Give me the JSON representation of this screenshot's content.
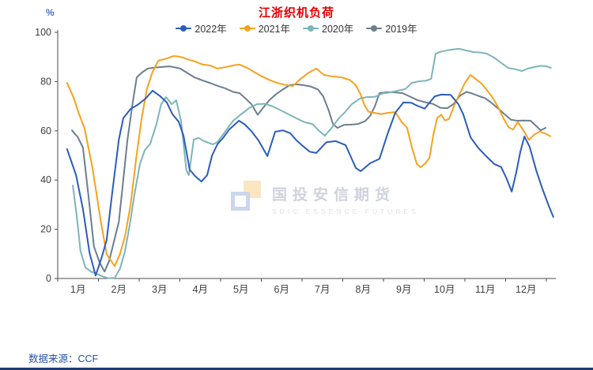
{
  "title": "江浙织机负荷",
  "y_axis_unit": "%",
  "footer": {
    "source_label": "数据来源：CCF"
  },
  "watermark": {
    "name": "国投安信期货",
    "subtitle": "SDIC ESSENCE FUTURES"
  },
  "chart_data": {
    "type": "line",
    "title": "江浙织机负荷",
    "xlabel": "",
    "ylabel": "%",
    "ylim": [
      0,
      100
    ],
    "y_ticks": [
      0,
      20,
      40,
      60,
      80,
      100
    ],
    "x_tick_labels": [
      "1月",
      "2月",
      "3月",
      "4月",
      "5月",
      "6月",
      "7月",
      "8月",
      "9月",
      "10月",
      "11月",
      "12月"
    ],
    "x_unit": "month (0 = Jan 1, 12 = Dec 31), weekly load rate in %",
    "grid": false,
    "legend_position": "top",
    "series": [
      {
        "name": "2022年",
        "color": "#2b5cbe",
        "points": [
          [
            0.23,
            52.6
          ],
          [
            0.45,
            42
          ],
          [
            0.62,
            28.2
          ],
          [
            0.78,
            10.5
          ],
          [
            0.93,
            1.2
          ],
          [
            1.07,
            8
          ],
          [
            1.2,
            15.5
          ],
          [
            1.34,
            35
          ],
          [
            1.5,
            56.4
          ],
          [
            1.61,
            65.1
          ],
          [
            1.79,
            68.9
          ],
          [
            1.96,
            70.5
          ],
          [
            2.16,
            73.1
          ],
          [
            2.33,
            76.3
          ],
          [
            2.52,
            74
          ],
          [
            2.68,
            71.5
          ],
          [
            2.82,
            66.7
          ],
          [
            2.97,
            63.7
          ],
          [
            3.09,
            58
          ],
          [
            3.24,
            44.2
          ],
          [
            3.38,
            41.5
          ],
          [
            3.53,
            39.4
          ],
          [
            3.67,
            42
          ],
          [
            3.79,
            50
          ],
          [
            3.92,
            54.5
          ],
          [
            4.08,
            57.5
          ],
          [
            4.21,
            60.5
          ],
          [
            4.45,
            64.1
          ],
          [
            4.6,
            62.5
          ],
          [
            4.76,
            59.8
          ],
          [
            4.93,
            56.1
          ],
          [
            5.15,
            49.7
          ],
          [
            5.34,
            59.6
          ],
          [
            5.53,
            60.2
          ],
          [
            5.71,
            59
          ],
          [
            5.86,
            56.2
          ],
          [
            6.02,
            53.8
          ],
          [
            6.19,
            51.5
          ],
          [
            6.35,
            51
          ],
          [
            6.6,
            55.4
          ],
          [
            6.83,
            55.8
          ],
          [
            7.07,
            54.2
          ],
          [
            7.32,
            44.9
          ],
          [
            7.44,
            43.6
          ],
          [
            7.67,
            46.8
          ],
          [
            7.9,
            48.6
          ],
          [
            8.1,
            58.7
          ],
          [
            8.29,
            67.3
          ],
          [
            8.49,
            71.5
          ],
          [
            8.68,
            71.4
          ],
          [
            8.83,
            70.2
          ],
          [
            9.01,
            69
          ],
          [
            9.26,
            74
          ],
          [
            9.42,
            74.7
          ],
          [
            9.65,
            74.6
          ],
          [
            9.84,
            70.8
          ],
          [
            9.96,
            66.7
          ],
          [
            10.14,
            57.3
          ],
          [
            10.33,
            53
          ],
          [
            10.52,
            49.7
          ],
          [
            10.72,
            46.5
          ],
          [
            10.89,
            45.3
          ],
          [
            11.03,
            40.4
          ],
          [
            11.15,
            35.3
          ],
          [
            11.26,
            43
          ],
          [
            11.36,
            51.3
          ],
          [
            11.46,
            57.7
          ],
          [
            11.59,
            53.5
          ],
          [
            11.75,
            44
          ],
          [
            11.9,
            36.5
          ],
          [
            12.06,
            29.5
          ],
          [
            12.17,
            25
          ]
        ]
      },
      {
        "name": "2021年",
        "color": "#f6a21d",
        "points": [
          [
            0.23,
            79.5
          ],
          [
            0.39,
            73.5
          ],
          [
            0.52,
            67
          ],
          [
            0.66,
            60.9
          ],
          [
            0.85,
            45.2
          ],
          [
            1.05,
            24
          ],
          [
            1.2,
            9.9
          ],
          [
            1.4,
            5
          ],
          [
            1.53,
            10
          ],
          [
            1.65,
            17
          ],
          [
            1.79,
            30
          ],
          [
            1.92,
            48
          ],
          [
            2.06,
            65
          ],
          [
            2.19,
            77
          ],
          [
            2.33,
            84
          ],
          [
            2.47,
            88.5
          ],
          [
            2.66,
            89.3
          ],
          [
            2.85,
            90.4
          ],
          [
            3.01,
            90.1
          ],
          [
            3.2,
            89
          ],
          [
            3.38,
            88.1
          ],
          [
            3.55,
            87
          ],
          [
            3.75,
            86.5
          ],
          [
            3.92,
            85.3
          ],
          [
            4.16,
            86
          ],
          [
            4.35,
            86.7
          ],
          [
            4.47,
            86.9
          ],
          [
            4.66,
            85.5
          ],
          [
            4.83,
            83.8
          ],
          [
            5.03,
            82
          ],
          [
            5.22,
            80.5
          ],
          [
            5.42,
            79.3
          ],
          [
            5.61,
            78.6
          ],
          [
            5.77,
            78.2
          ],
          [
            5.96,
            81
          ],
          [
            6.16,
            83.6
          ],
          [
            6.35,
            85.3
          ],
          [
            6.54,
            82.7
          ],
          [
            6.74,
            82.1
          ],
          [
            6.97,
            81.7
          ],
          [
            7.18,
            80.6
          ],
          [
            7.32,
            78.5
          ],
          [
            7.44,
            74.7
          ],
          [
            7.53,
            70.5
          ],
          [
            7.63,
            67.8
          ],
          [
            7.77,
            67.3
          ],
          [
            7.94,
            66.8
          ],
          [
            8.12,
            67.3
          ],
          [
            8.29,
            67.6
          ],
          [
            8.45,
            63.5
          ],
          [
            8.58,
            61.2
          ],
          [
            8.7,
            53.2
          ],
          [
            8.82,
            46.5
          ],
          [
            8.91,
            45.2
          ],
          [
            9.03,
            46.8
          ],
          [
            9.13,
            49
          ],
          [
            9.22,
            58
          ],
          [
            9.32,
            65.3
          ],
          [
            9.42,
            66.5
          ],
          [
            9.51,
            64.2
          ],
          [
            9.61,
            64.8
          ],
          [
            9.73,
            70
          ],
          [
            9.86,
            74.7
          ],
          [
            10,
            79.5
          ],
          [
            10.14,
            82.7
          ],
          [
            10.27,
            81
          ],
          [
            10.41,
            79.2
          ],
          [
            10.54,
            76.5
          ],
          [
            10.68,
            73.5
          ],
          [
            10.82,
            69.5
          ],
          [
            10.95,
            65
          ],
          [
            11.07,
            61.5
          ],
          [
            11.18,
            60.5
          ],
          [
            11.3,
            63.6
          ],
          [
            11.44,
            60
          ],
          [
            11.57,
            56.3
          ],
          [
            11.71,
            58.6
          ],
          [
            11.84,
            59.7
          ],
          [
            11.98,
            58.8
          ],
          [
            12.1,
            57.8
          ]
        ]
      },
      {
        "name": "2020年",
        "color": "#7cb5ba",
        "points": [
          [
            0.37,
            37.8
          ],
          [
            0.47,
            25
          ],
          [
            0.56,
            11.2
          ],
          [
            0.68,
            4.5
          ],
          [
            0.82,
            2.8
          ],
          [
            0.97,
            1.8
          ],
          [
            1.11,
            0.8
          ],
          [
            1.24,
            0.1
          ],
          [
            1.4,
            0.3
          ],
          [
            1.53,
            4
          ],
          [
            1.65,
            11
          ],
          [
            1.77,
            22
          ],
          [
            1.88,
            33.7
          ],
          [
            2.02,
            46.5
          ],
          [
            2.14,
            52.2
          ],
          [
            2.27,
            54.6
          ],
          [
            2.43,
            63
          ],
          [
            2.54,
            70.8
          ],
          [
            2.66,
            73.7
          ],
          [
            2.8,
            70.8
          ],
          [
            2.91,
            72.4
          ],
          [
            3.03,
            64
          ],
          [
            3.16,
            44
          ],
          [
            3.22,
            42
          ],
          [
            3.34,
            56.4
          ],
          [
            3.46,
            57.1
          ],
          [
            3.57,
            56
          ],
          [
            3.69,
            55.2
          ],
          [
            3.81,
            54.5
          ],
          [
            3.92,
            55.4
          ],
          [
            4.04,
            58
          ],
          [
            4.16,
            60.8
          ],
          [
            4.31,
            64.1
          ],
          [
            4.5,
            66.7
          ],
          [
            4.7,
            69.2
          ],
          [
            4.89,
            70.8
          ],
          [
            5.09,
            71
          ],
          [
            5.28,
            69.9
          ],
          [
            5.48,
            68.3
          ],
          [
            5.67,
            66.7
          ],
          [
            5.86,
            65.1
          ],
          [
            6.06,
            63.5
          ],
          [
            6.25,
            62.8
          ],
          [
            6.43,
            59.8
          ],
          [
            6.56,
            58
          ],
          [
            6.72,
            61
          ],
          [
            6.89,
            64.8
          ],
          [
            7.05,
            67.5
          ],
          [
            7.22,
            70.8
          ],
          [
            7.42,
            73.1
          ],
          [
            7.59,
            73.7
          ],
          [
            7.79,
            73.8
          ],
          [
            7.98,
            75.2
          ],
          [
            8.17,
            75.6
          ],
          [
            8.37,
            76.4
          ],
          [
            8.54,
            77
          ],
          [
            8.7,
            79.5
          ],
          [
            8.87,
            80.1
          ],
          [
            9.05,
            80.4
          ],
          [
            9.17,
            81.1
          ],
          [
            9.28,
            91.3
          ],
          [
            9.42,
            92.2
          ],
          [
            9.57,
            92.7
          ],
          [
            9.73,
            93.1
          ],
          [
            9.86,
            93.3
          ],
          [
            10.04,
            92.6
          ],
          [
            10.21,
            92
          ],
          [
            10.39,
            91.8
          ],
          [
            10.54,
            91.3
          ],
          [
            10.72,
            89.7
          ],
          [
            10.89,
            87.6
          ],
          [
            11.07,
            85.5
          ],
          [
            11.24,
            85
          ],
          [
            11.4,
            84.3
          ],
          [
            11.55,
            85.3
          ],
          [
            11.7,
            85.9
          ],
          [
            11.86,
            86.4
          ],
          [
            12,
            86.2
          ],
          [
            12.11,
            85.5
          ]
        ]
      },
      {
        "name": "2019年",
        "color": "#6c7e8e",
        "points": [
          [
            0.35,
            60.2
          ],
          [
            0.49,
            57.5
          ],
          [
            0.62,
            53.2
          ],
          [
            0.76,
            33
          ],
          [
            0.89,
            13
          ],
          [
            1.03,
            6.5
          ],
          [
            1.15,
            2.8
          ],
          [
            1.26,
            7
          ],
          [
            1.38,
            15
          ],
          [
            1.5,
            23
          ],
          [
            1.61,
            40
          ],
          [
            1.71,
            56.1
          ],
          [
            1.83,
            70
          ],
          [
            1.94,
            81.7
          ],
          [
            2.08,
            83.8
          ],
          [
            2.21,
            85.3
          ],
          [
            2.39,
            85.7
          ],
          [
            2.58,
            86
          ],
          [
            2.74,
            86.2
          ],
          [
            2.87,
            85.8
          ],
          [
            3.01,
            85.3
          ],
          [
            3.18,
            83.5
          ],
          [
            3.36,
            81.7
          ],
          [
            3.55,
            80.5
          ],
          [
            3.73,
            79.5
          ],
          [
            3.92,
            78.3
          ],
          [
            4.12,
            77.2
          ],
          [
            4.31,
            75.8
          ],
          [
            4.47,
            75.3
          ],
          [
            4.62,
            73
          ],
          [
            4.76,
            70.8
          ],
          [
            4.91,
            66.5
          ],
          [
            5.05,
            69.5
          ],
          [
            5.2,
            72.5
          ],
          [
            5.36,
            74.8
          ],
          [
            5.51,
            76.6
          ],
          [
            5.69,
            78.5
          ],
          [
            5.84,
            78.9
          ],
          [
            6.02,
            78.6
          ],
          [
            6.21,
            78
          ],
          [
            6.39,
            76.8
          ],
          [
            6.52,
            74
          ],
          [
            6.66,
            68
          ],
          [
            6.76,
            62.8
          ],
          [
            6.87,
            61.2
          ],
          [
            7.03,
            62.4
          ],
          [
            7.2,
            62.5
          ],
          [
            7.38,
            62.8
          ],
          [
            7.55,
            63.9
          ],
          [
            7.67,
            66
          ],
          [
            7.79,
            70
          ],
          [
            7.9,
            75.3
          ],
          [
            8.1,
            75.7
          ],
          [
            8.29,
            75.6
          ],
          [
            8.47,
            75.3
          ],
          [
            8.64,
            74
          ],
          [
            8.83,
            72.5
          ],
          [
            9.03,
            71.6
          ],
          [
            9.22,
            70.9
          ],
          [
            9.4,
            69.3
          ],
          [
            9.57,
            69.2
          ],
          [
            9.73,
            71
          ],
          [
            9.88,
            74.3
          ],
          [
            10.04,
            75.8
          ],
          [
            10.17,
            75.2
          ],
          [
            10.33,
            74.2
          ],
          [
            10.49,
            73.3
          ],
          [
            10.62,
            71.8
          ],
          [
            10.8,
            69.3
          ],
          [
            10.97,
            66.8
          ],
          [
            11.13,
            64.5
          ],
          [
            11.28,
            64.1
          ],
          [
            11.46,
            64.2
          ],
          [
            11.61,
            64.1
          ],
          [
            11.75,
            62
          ],
          [
            11.86,
            60.2
          ],
          [
            11.98,
            61.2
          ]
        ]
      }
    ],
    "axis_color": "#4d4d4d",
    "tick_label_color": "#404040"
  }
}
